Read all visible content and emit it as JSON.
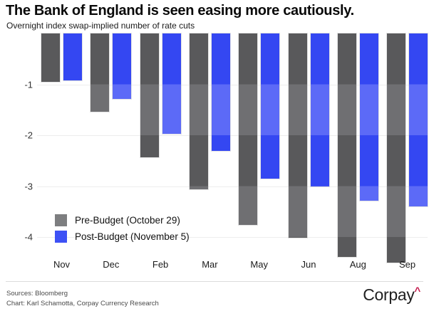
{
  "title": "The Bank of England is seen easing more cautiously.",
  "subtitle": "Overnight index swap-implied number of rate cuts",
  "chart_data": {
    "type": "bar",
    "categories": [
      "Nov",
      "Dec",
      "Feb",
      "Mar",
      "May",
      "Jun",
      "Aug",
      "Sep"
    ],
    "series": [
      {
        "name": "Pre-Budget (October 29)",
        "values": [
          -0.95,
          -1.54,
          -2.43,
          -3.06,
          -3.76,
          -4.01,
          -4.39,
          -4.5
        ],
        "color": "#59595b",
        "color_band_alt": "#6f6f72"
      },
      {
        "name": "Post-Budget (November 5)",
        "values": [
          -0.93,
          -1.28,
          -1.97,
          -2.31,
          -2.86,
          -3.0,
          -3.28,
          -3.4
        ],
        "color": "#3447f2",
        "color_band_alt": "#5c6af7"
      }
    ],
    "xlabel": "",
    "ylabel": "",
    "yticks": [
      -1,
      -2,
      -3,
      -4
    ],
    "ylim": [
      0,
      -4.6
    ],
    "grid": true,
    "bar_orientation": "vertical-hanging",
    "band_shading_every": 1,
    "legend_position": "inside-bottom-left"
  },
  "legend": {
    "items": [
      {
        "label": "Pre-Budget (October 29)",
        "color": "#7d7e80"
      },
      {
        "label": "Post-Budget (November 5)",
        "color": "#3d51f5"
      }
    ]
  },
  "footer": {
    "sources": "Sources: Bloomberg",
    "credit": "Chart: Karl Schamotta, Corpay Currency Research",
    "logo_text": "Corpay",
    "logo_caret": "^"
  }
}
